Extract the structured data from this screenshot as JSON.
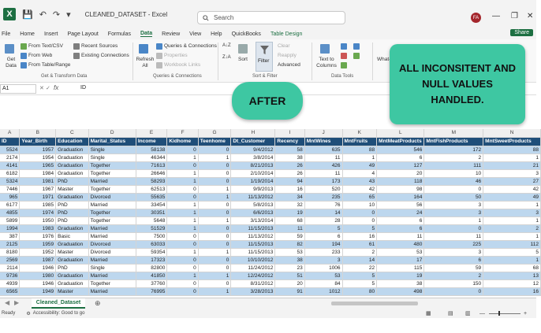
{
  "app": {
    "title": "CLEANED_DATASET  -  Excel",
    "search_placeholder": "Search",
    "user_initials": "FA"
  },
  "menu": {
    "items": [
      "File",
      "Home",
      "Insert",
      "Page Layout",
      "Formulas",
      "Data",
      "Review",
      "View",
      "Help",
      "QuickBooks",
      "Table Design"
    ],
    "active": "Data",
    "share_label": "Share"
  },
  "ribbon": {
    "get_data": "Get Data",
    "from_text_csv": "From Text/CSV",
    "from_web": "From Web",
    "from_table_range": "From Table/Range",
    "recent_sources": "Recent Sources",
    "existing_connections": "Existing Connections",
    "group_get_transform": "Get & Transform Data",
    "refresh_all": "Refresh All",
    "queries_connections": "Queries & Connections",
    "properties": "Properties",
    "workbook_links": "Workbook Links",
    "group_queries": "Queries & Connections",
    "sort": "Sort",
    "filter": "Filter",
    "clear": "Clear",
    "reapply": "Reapply",
    "advanced": "Advanced",
    "group_sort_filter": "Sort & Filter",
    "text_to_columns": "Text to Columns",
    "group_data_tools": "Data Tools",
    "what_if": "What-If Analysis"
  },
  "formula_bar": {
    "name_box": "A1",
    "fx": "fx",
    "value": "ID"
  },
  "overlay": {
    "after_label": "AFTER",
    "callout_text": "ALL INCONSITENT AND NULL VALUES HANDLED."
  },
  "colors": {
    "accent": "#1d6f42",
    "header_fill": "#1f4e79",
    "band_fill": "#bdd7ee",
    "overlay_fill": "#3ec7a2"
  },
  "sheet": {
    "column_letters": [
      "A",
      "B",
      "C",
      "D",
      "E",
      "F",
      "G",
      "H",
      "I",
      "J",
      "K",
      "L",
      "M",
      "N"
    ],
    "headers": [
      "ID",
      "Year_Birth",
      "Education",
      "Marital_Status",
      "Income",
      "Kidhome",
      "Teenhome",
      "Dt_Customer",
      "Recency",
      "MntWines",
      "MntFruits",
      "MntMeatProducts",
      "MntFishProducts",
      "MntSweetProducts"
    ],
    "rows": [
      [
        "5524",
        "1957",
        "Graduation",
        "Single",
        "58138",
        "0",
        "0",
        "9/4/2012",
        "58",
        "635",
        "88",
        "546",
        "172",
        "88"
      ],
      [
        "2174",
        "1954",
        "Graduation",
        "Single",
        "46344",
        "1",
        "1",
        "3/8/2014",
        "38",
        "11",
        "1",
        "6",
        "2",
        "1"
      ],
      [
        "4141",
        "1965",
        "Graduation",
        "Together",
        "71613",
        "0",
        "0",
        "8/21/2013",
        "26",
        "426",
        "49",
        "127",
        "111",
        "21"
      ],
      [
        "6182",
        "1984",
        "Graduation",
        "Together",
        "26646",
        "1",
        "0",
        "2/10/2014",
        "26",
        "11",
        "4",
        "20",
        "10",
        "3"
      ],
      [
        "5324",
        "1981",
        "PhD",
        "Married",
        "58293",
        "1",
        "0",
        "1/19/2014",
        "94",
        "173",
        "43",
        "118",
        "46",
        "27"
      ],
      [
        "7446",
        "1967",
        "Master",
        "Together",
        "62513",
        "0",
        "1",
        "9/9/2013",
        "16",
        "520",
        "42",
        "98",
        "0",
        "42"
      ],
      [
        "965",
        "1971",
        "Graduation",
        "Divorced",
        "55635",
        "0",
        "1",
        "11/13/2012",
        "34",
        "235",
        "65",
        "164",
        "50",
        "49"
      ],
      [
        "6177",
        "1985",
        "PhD",
        "Married",
        "33454",
        "1",
        "0",
        "5/8/2013",
        "32",
        "76",
        "10",
        "56",
        "3",
        "1"
      ],
      [
        "4855",
        "1974",
        "PhD",
        "Together",
        "30351",
        "1",
        "0",
        "6/6/2013",
        "19",
        "14",
        "0",
        "24",
        "3",
        "3"
      ],
      [
        "5899",
        "1950",
        "PhD",
        "Together",
        "5648",
        "1",
        "1",
        "3/13/2014",
        "68",
        "28",
        "0",
        "6",
        "1",
        "1"
      ],
      [
        "1994",
        "1983",
        "Graduation",
        "Married",
        "51529",
        "1",
        "0",
        "11/15/2013",
        "11",
        "5",
        "5",
        "6",
        "0",
        "2"
      ],
      [
        "387",
        "1976",
        "Basic",
        "Married",
        "7500",
        "0",
        "0",
        "11/13/2012",
        "59",
        "6",
        "16",
        "11",
        "11",
        "1"
      ],
      [
        "2125",
        "1959",
        "Graduation",
        "Divorced",
        "63033",
        "0",
        "0",
        "11/15/2013",
        "82",
        "194",
        "61",
        "480",
        "225",
        "112"
      ],
      [
        "8180",
        "1952",
        "Master",
        "Divorced",
        "59354",
        "1",
        "1",
        "11/15/2013",
        "53",
        "233",
        "2",
        "53",
        "3",
        "5"
      ],
      [
        "2569",
        "1987",
        "Graduation",
        "Married",
        "17323",
        "0",
        "0",
        "10/10/2012",
        "38",
        "3",
        "14",
        "17",
        "6",
        "1"
      ],
      [
        "2114",
        "1946",
        "PhD",
        "Single",
        "82800",
        "0",
        "0",
        "11/24/2012",
        "23",
        "1006",
        "22",
        "115",
        "59",
        "68"
      ],
      [
        "9736",
        "1980",
        "Graduation",
        "Married",
        "41850",
        "1",
        "1",
        "12/24/2012",
        "51",
        "53",
        "5",
        "19",
        "2",
        "13"
      ],
      [
        "4939",
        "1946",
        "Graduation",
        "Together",
        "37760",
        "0",
        "0",
        "8/31/2012",
        "20",
        "84",
        "5",
        "38",
        "150",
        "12"
      ],
      [
        "6565",
        "1949",
        "Master",
        "Married",
        "76995",
        "0",
        "1",
        "3/28/2013",
        "91",
        "1012",
        "80",
        "498",
        "0",
        "16"
      ]
    ]
  },
  "tabs": {
    "sheet_name": "Cleaned_Dataset"
  },
  "status": {
    "ready": "Ready",
    "accessibility": "Accessibility: Good to go"
  }
}
